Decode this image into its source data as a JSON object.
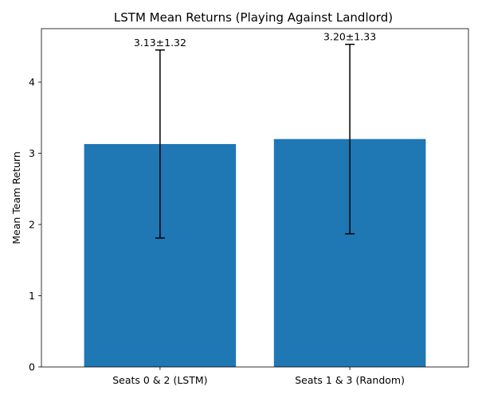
{
  "chart_data": {
    "type": "bar",
    "title": "LSTM Mean Returns (Playing Against Landlord)",
    "xlabel": "",
    "ylabel": "Mean Team Return",
    "categories": [
      "Seats 0 & 2 (LSTM)",
      "Seats 1 & 3 (Random)"
    ],
    "values": [
      3.13,
      3.2
    ],
    "errors": [
      1.32,
      1.33
    ],
    "data_labels": [
      "3.13±1.32",
      "3.20±1.33"
    ],
    "ylim": [
      0,
      4.75
    ],
    "yticks": [
      0,
      1,
      2,
      3,
      4
    ],
    "ytick_labels": [
      "0",
      "1",
      "2",
      "3",
      "4"
    ],
    "bar_color": "#1f77b4",
    "errorbar_color": "#000000",
    "grid": false,
    "legend": "none"
  }
}
